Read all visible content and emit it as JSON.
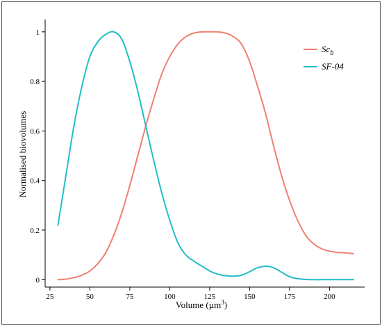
{
  "chart_data": {
    "type": "line",
    "xlabel": "Volume (µm",
    "xlabel_sup": "3",
    "xlabel_close": ")",
    "ylabel": "Normalised biovolumes",
    "xlim": [
      22,
      222
    ],
    "ylim": [
      -0.03,
      1.05
    ],
    "x_ticks": [
      25,
      50,
      75,
      100,
      125,
      150,
      175,
      200
    ],
    "x_tick_labels": [
      "25",
      "50",
      "75",
      "100",
      "125",
      "150",
      "175",
      "200"
    ],
    "y_ticks": [
      0,
      0.2,
      0.4,
      0.6,
      0.8,
      1
    ],
    "y_tick_labels": [
      "0",
      "0.2",
      "0.4",
      "0.6",
      "0.8",
      "1"
    ],
    "grid": false,
    "legend_position": "top-right",
    "series": [
      {
        "name": "Sc",
        "name_sub": "b",
        "color": "#f08070",
        "x": [
          30,
          35,
          40,
          45,
          50,
          55,
          60,
          65,
          70,
          75,
          80,
          85,
          90,
          95,
          100,
          105,
          110,
          115,
          120,
          125,
          130,
          135,
          140,
          145,
          150,
          155,
          160,
          165,
          170,
          175,
          180,
          185,
          190,
          195,
          200,
          205,
          210,
          215
        ],
        "values": [
          0.0,
          0.002,
          0.008,
          0.018,
          0.035,
          0.065,
          0.11,
          0.18,
          0.27,
          0.38,
          0.5,
          0.62,
          0.73,
          0.83,
          0.9,
          0.95,
          0.98,
          0.995,
          1.0,
          1.0,
          1.0,
          0.995,
          0.98,
          0.95,
          0.88,
          0.78,
          0.67,
          0.54,
          0.42,
          0.32,
          0.24,
          0.18,
          0.145,
          0.125,
          0.115,
          0.11,
          0.108,
          0.105
        ]
      },
      {
        "name": "SF-04",
        "color": "#20bec8",
        "x": [
          30,
          35,
          40,
          45,
          50,
          55,
          60,
          65,
          70,
          75,
          80,
          85,
          90,
          95,
          100,
          105,
          110,
          115,
          120,
          125,
          130,
          135,
          140,
          145,
          150,
          155,
          160,
          165,
          170,
          175,
          180,
          185,
          190,
          195,
          200,
          205,
          210,
          215
        ],
        "values": [
          0.22,
          0.42,
          0.62,
          0.78,
          0.9,
          0.96,
          0.99,
          1.0,
          0.97,
          0.88,
          0.76,
          0.62,
          0.48,
          0.35,
          0.24,
          0.15,
          0.1,
          0.075,
          0.055,
          0.035,
          0.022,
          0.016,
          0.014,
          0.018,
          0.032,
          0.048,
          0.054,
          0.048,
          0.03,
          0.012,
          0.004,
          0.001,
          0.0,
          0.0,
          0.0,
          0.0,
          0.0,
          0.0
        ]
      }
    ]
  }
}
